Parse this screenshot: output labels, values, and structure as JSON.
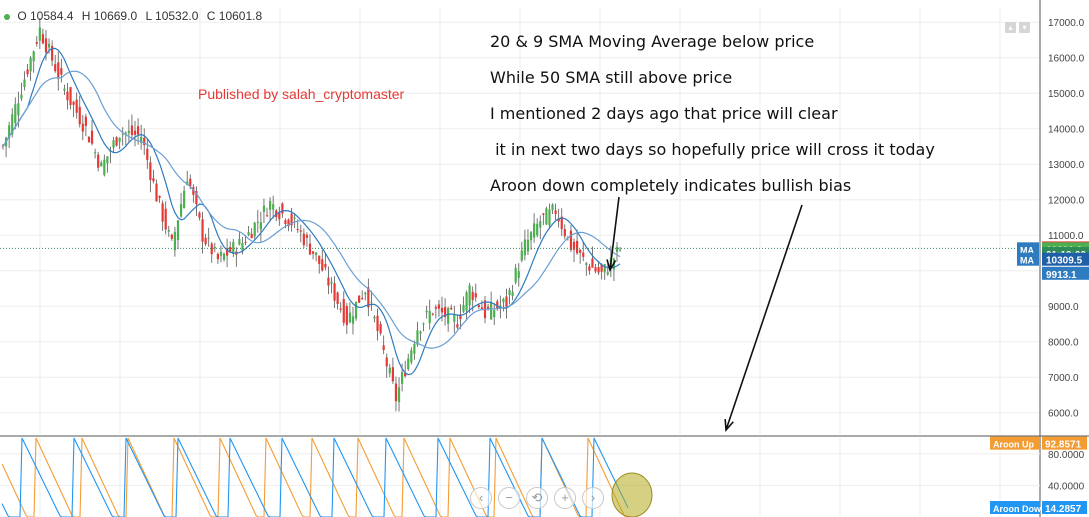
{
  "ohlc": {
    "open": "O 10584.4",
    "high": "H 10669.0",
    "low": "L 10532.0",
    "close": "C 10601.8"
  },
  "published": "Published by salah_cryptomaster",
  "notes": [
    "20 & 9 SMA Moving Average below price",
    "While 50 SMA still above price",
    "I mentioned 2 days ago that price will clear",
    " it in next two days so hopefully price will cross it today",
    "Aroon down completely indicates bullish bias"
  ],
  "colors": {
    "up": "#4caf50",
    "down": "#e53935",
    "ma_slow": "#6a9fd4",
    "ma_fast": "#2e7bbf",
    "aroon_up": "#f39c34",
    "aroon_down": "#2196f3",
    "axis_text": "#444444",
    "grid": "#eeeeee"
  },
  "chart_data": [
    {
      "type": "candlestick",
      "title": "",
      "yticks": [
        6000,
        7000,
        8000,
        9000,
        10000,
        11000,
        12000,
        13000,
        14000,
        15000,
        16000,
        17000
      ],
      "ytick_labels": [
        "6000.0",
        "7000.0",
        "8000.0",
        "9000.0",
        "10000.0",
        "11000.0",
        "12000.0",
        "13000.0",
        "14000.0",
        "15000.0",
        "16000.0",
        "17000.0"
      ],
      "ylim": [
        5400,
        17400
      ],
      "grid": true,
      "price_path": {
        "bars_index": [
          0,
          12,
          20,
          27,
          32,
          38,
          45,
          50,
          55,
          60,
          65,
          70,
          78,
          87,
          95,
          102,
          112,
          118,
          123,
          128,
          135,
          140,
          148,
          152,
          157,
          164,
          170,
          175,
          180,
          185,
          190,
          195,
          201
        ],
        "close": [
          13500,
          16800,
          15100,
          14000,
          12900,
          13900,
          13800,
          12100,
          10700,
          12700,
          11000,
          10300,
          10800,
          11900,
          11300,
          10400,
          8600,
          9500,
          8000,
          6400,
          8400,
          8900,
          8600,
          9500,
          8800,
          9100,
          10700,
          11400,
          11700,
          10700,
          10200,
          9900,
          10600
        ]
      },
      "ma": [
        {
          "label": "MA",
          "value": 10601.8
        },
        {
          "label": "MA",
          "value": 10309.5
        }
      ],
      "markers": [
        {
          "label": "10628.0",
          "value": 10628,
          "color": "#e53935"
        },
        {
          "label": "10601.8",
          "value": 10601.8,
          "color": "#4caf50"
        },
        {
          "label": "01:19:00",
          "value": 10470,
          "color": "#2e8b57"
        },
        {
          "label": "10309.5",
          "value": 10309.5,
          "color": "#1f5fa8"
        },
        {
          "label": "9913.1",
          "value": 9913.1,
          "color": "#2e7bbf"
        }
      ]
    },
    {
      "type": "line",
      "title": "Aroon",
      "yticks": [
        40,
        80
      ],
      "ytick_labels": [
        "40.0000",
        "80.0000"
      ],
      "ylim": [
        0,
        100
      ],
      "series": [
        {
          "name": "Aroon Up",
          "last_label": "92.8571",
          "last_value": 92.8571
        },
        {
          "name": "Aroon Down",
          "last_label": "14.2857",
          "last_value": 14.2857
        }
      ]
    }
  ],
  "zoom_buttons": [
    "‹",
    "−",
    "⟲",
    "+",
    "›"
  ],
  "window_controls": [
    "▴",
    "▾"
  ]
}
